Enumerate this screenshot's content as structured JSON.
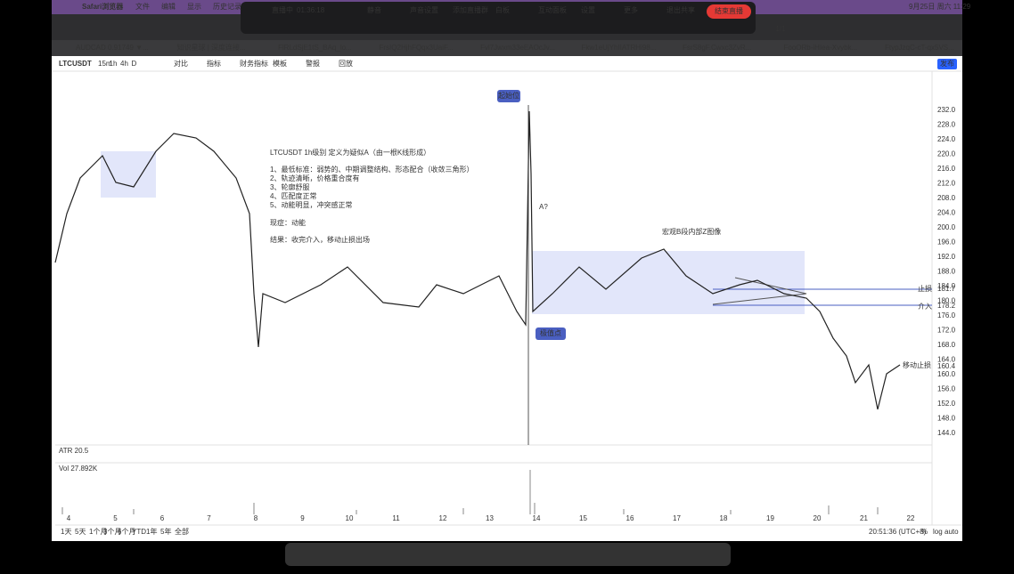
{
  "menubar": {
    "app": "Safari浏览器",
    "items": [
      "文件",
      "编辑",
      "显示",
      "历史记录"
    ],
    "datetime": "9月25日 周六 11:29"
  },
  "meeting_bar": {
    "status": "直播中",
    "time": "01:36:18",
    "buttons": [
      "静音",
      "声音设置",
      "添加直播群",
      "白板",
      "互动面板",
      "设置",
      "更多",
      "退出共享"
    ],
    "end": "结束直播",
    "page": "1/1"
  },
  "tabs": [
    "AUDCAD 0.91749 ▼...",
    "知识星球 | 深度连接...",
    "FlRLdSjE1tS_BAq_lo...",
    "FrsIQ2HjhFQqx3UaiF...",
    "Fvl7Jwxm33eEAOcJv...",
    "Fkw1eUjYhIIATRHi98...",
    "FsrS8gF.Cwxc3ZvR...",
    "FooORb-iHIea-Xvybk...",
    "FtypJzqC-cT-qx5VS..."
  ],
  "toolbar": {
    "symbol": "LTCUSDT",
    "intervals": [
      "15m",
      "1h",
      "4h",
      "D"
    ],
    "buttons": [
      "对比",
      "指标",
      "财务指标",
      "模板",
      "警报",
      "回放"
    ],
    "publish": "发布"
  },
  "note": {
    "title": "LTCUSDT 1h级别 定义为疑似A（由一根K线形成）",
    "lines": [
      "1、最低标准：弱势的、中期调整结构、形态配合（收敛三角形）",
      "2、轨迹清晰，价格重合度有",
      "3、轮廓舒服",
      "4、匹配度正常",
      "5、动能明显，冲突感正常"
    ],
    "phenomenon": "现症：动能",
    "result": "结果：收完介入，移动止损出场"
  },
  "labels": {
    "start": "起始位",
    "a": "A?",
    "extreme": "极值点",
    "macro": "宏观B段内部Z图像",
    "stop": "止损",
    "entry": "介入",
    "trail": "移动止损"
  },
  "price_axis": [
    "232.0",
    "228.0",
    "224.0",
    "220.0",
    "216.0",
    "212.0",
    "208.0",
    "204.0",
    "200.0",
    "196.0",
    "192.0",
    "188.0",
    "184.0",
    "180.0",
    "176.0",
    "172.0",
    "168.0",
    "164.0",
    "160.0",
    "156.0",
    "152.0",
    "148.0",
    "144.0"
  ],
  "price_tags": [
    "181.7",
    "178.2",
    "160.4"
  ],
  "x_axis": [
    "4",
    "5",
    "6",
    "7",
    "8",
    "9",
    "10",
    "11",
    "12",
    "13",
    "14",
    "15",
    "16",
    "17",
    "18",
    "19",
    "20",
    "21",
    "22"
  ],
  "indicators": [
    "ATR 20.5",
    "Vol 27.892K"
  ],
  "bottom": {
    "ranges": [
      "1天",
      "5天",
      "1个月",
      "3个月",
      "6个月",
      "YTD",
      "1年",
      "5年",
      "全部"
    ],
    "clock": "20:51:36 (UTC+8)",
    "options": [
      "%",
      "log",
      "auto"
    ]
  }
}
